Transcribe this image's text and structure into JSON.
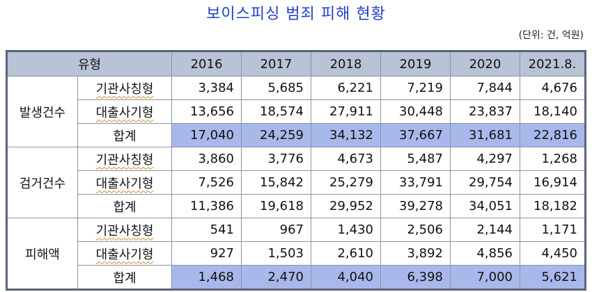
{
  "header": {
    "title": "보이스피싱 범죄 피해 현황",
    "unit": "(단위: 건, 억원)"
  },
  "table": {
    "columns": [
      "유형",
      "2016",
      "2017",
      "2018",
      "2019",
      "2020",
      "2021.8."
    ],
    "groups": [
      {
        "label": "발생건수",
        "rows": [
          {
            "type": "기관사칭형",
            "values": [
              "3,384",
              "5,685",
              "6,221",
              "7,219",
              "7,844",
              "4,676"
            ]
          },
          {
            "type": "대출사기형",
            "values": [
              "13,656",
              "18,574",
              "27,911",
              "30,448",
              "23,837",
              "18,140"
            ]
          },
          {
            "type": "합계",
            "highlight": true,
            "values": [
              "17,040",
              "24,259",
              "34,132",
              "37,667",
              "31,681",
              "22,816"
            ]
          }
        ]
      },
      {
        "label": "검거건수",
        "rows": [
          {
            "type": "기관사칭형",
            "values": [
              "3,860",
              "3,776",
              "4,673",
              "5,487",
              "4,297",
              "1,268"
            ]
          },
          {
            "type": "대출사기형",
            "values": [
              "7,526",
              "15,842",
              "25,279",
              "33,791",
              "29,754",
              "16,914"
            ]
          },
          {
            "type": "합계",
            "values": [
              "11,386",
              "19,618",
              "29,952",
              "39,278",
              "34,051",
              "18,182"
            ]
          }
        ]
      },
      {
        "label": "피해액",
        "rows": [
          {
            "type": "기관사칭형",
            "values": [
              "541",
              "967",
              "1,430",
              "2,506",
              "2,144",
              "1,171"
            ]
          },
          {
            "type": "대출사기형",
            "values": [
              "927",
              "1,503",
              "2,610",
              "3,892",
              "4,856",
              "4,450"
            ]
          },
          {
            "type": "합계",
            "highlight": true,
            "values": [
              "1,468",
              "2,470",
              "4,040",
              "6,398",
              "7,000",
              "5,621"
            ]
          }
        ]
      }
    ]
  }
}
